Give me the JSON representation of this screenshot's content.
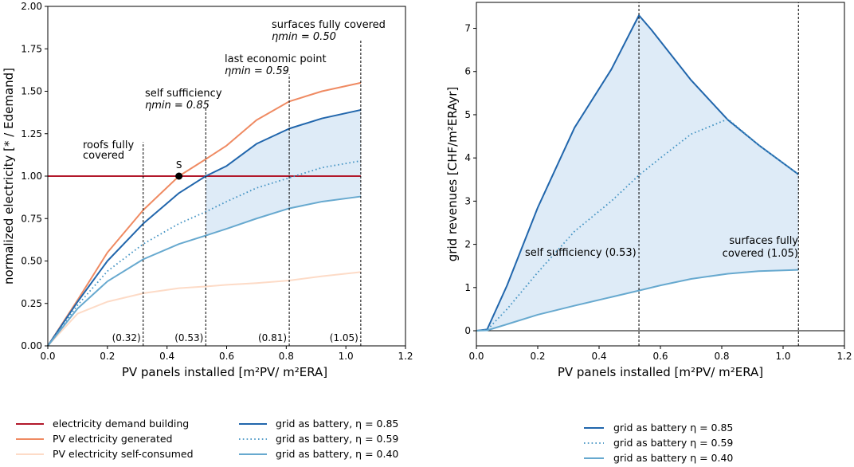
{
  "colors": {
    "demand": "#b2182b",
    "generated": "#ef8a62",
    "self_consumed": "#fddbc7",
    "grid_dark": "#2166ac",
    "grid_mid": "#4393c3",
    "grid_light": "#67a9cf",
    "band_fill": "#deebf7"
  },
  "chart_data": [
    {
      "type": "line",
      "title": "",
      "xlabel": "PV panels installed  [m²PV/ m²ERA]",
      "ylabel": "normalized electricity [* / Edemand]",
      "xlim": [
        0,
        1.2
      ],
      "ylim": [
        0,
        2.0
      ],
      "xticks": [
        "0.0",
        "0.2",
        "0.4",
        "0.6",
        "0.8",
        "1.0",
        "1.2"
      ],
      "yticks": [
        "0.00",
        "0.25",
        "0.50",
        "0.75",
        "1.00",
        "1.25",
        "1.50",
        "1.75",
        "2.00"
      ],
      "series": [
        {
          "name": "electricity demand building",
          "color_key": "demand",
          "style": "solid",
          "x": [
            0,
            1.05
          ],
          "y": [
            1.0,
            1.0
          ]
        },
        {
          "name": "PV electricity generated",
          "color_key": "generated",
          "style": "solid",
          "x": [
            0,
            0.1,
            0.2,
            0.32,
            0.44,
            0.53,
            0.6,
            0.7,
            0.81,
            0.92,
            1.05
          ],
          "y": [
            0,
            0.27,
            0.55,
            0.8,
            1.0,
            1.1,
            1.18,
            1.33,
            1.44,
            1.5,
            1.55
          ]
        },
        {
          "name": "PV electricity self-consumed",
          "color_key": "self_consumed",
          "style": "solid",
          "x": [
            0,
            0.1,
            0.2,
            0.32,
            0.44,
            0.53,
            0.6,
            0.7,
            0.81,
            0.92,
            1.05
          ],
          "y": [
            0,
            0.19,
            0.26,
            0.31,
            0.34,
            0.35,
            0.36,
            0.37,
            0.385,
            0.41,
            0.435
          ]
        },
        {
          "name": "grid as battery, η = 0.85",
          "color_key": "grid_dark",
          "style": "solid",
          "x": [
            0,
            0.1,
            0.2,
            0.32,
            0.44,
            0.53,
            0.6,
            0.7,
            0.81,
            0.92,
            1.05
          ],
          "y": [
            0,
            0.26,
            0.5,
            0.72,
            0.9,
            1.0,
            1.06,
            1.19,
            1.28,
            1.34,
            1.39
          ]
        },
        {
          "name": "grid as battery, η = 0.59",
          "color_key": "grid_mid",
          "style": "dotted",
          "x": [
            0,
            0.1,
            0.2,
            0.32,
            0.44,
            0.53,
            0.6,
            0.7,
            0.81,
            0.92,
            1.05
          ],
          "y": [
            0,
            0.24,
            0.44,
            0.6,
            0.72,
            0.79,
            0.85,
            0.93,
            0.99,
            1.05,
            1.09
          ]
        },
        {
          "name": "grid as battery, η = 0.40",
          "color_key": "grid_light",
          "style": "solid",
          "x": [
            0,
            0.1,
            0.2,
            0.32,
            0.44,
            0.53,
            0.6,
            0.7,
            0.81,
            0.92,
            1.05
          ],
          "y": [
            0,
            0.22,
            0.38,
            0.51,
            0.6,
            0.65,
            0.69,
            0.75,
            0.81,
            0.85,
            0.88
          ]
        }
      ],
      "shaded_band": {
        "between": [
          "grid as battery, η = 0.85",
          "grid as battery, η = 0.40"
        ],
        "x_from": 0.53,
        "x_to": 1.05
      },
      "point": {
        "label": "S",
        "x": 0.44,
        "y": 1.0
      },
      "vlines": [
        {
          "x": 0.32,
          "y_top": 1.2,
          "label": "(0.32)",
          "annotation": [
            "roofs fully",
            "covered"
          ]
        },
        {
          "x": 0.53,
          "y_top": 1.4,
          "label": "(0.53)",
          "annotation": [
            "self sufficiency",
            "ηmin = 0.85"
          ]
        },
        {
          "x": 0.81,
          "y_top": 1.6,
          "label": "(0.81)",
          "annotation": [
            "last economic point",
            "ηmin = 0.59"
          ]
        },
        {
          "x": 1.05,
          "y_top": 1.8,
          "label": "(1.05)",
          "annotation": [
            "surfaces fully covered",
            "ηmin = 0.50"
          ]
        }
      ],
      "legend": [
        "electricity demand building",
        "PV electricity generated",
        "PV electricity self-consumed",
        "grid as battery, η = 0.85",
        "grid as battery, η = 0.59",
        "grid as battery, η = 0.40"
      ]
    },
    {
      "type": "line",
      "title": "",
      "xlabel": "PV panels installed  [m²PV/ m²ERA]",
      "ylabel": "grid revenues [CHF/m²ERAyr]",
      "xlim": [
        0,
        1.2
      ],
      "ylim": [
        -0.35,
        7.6
      ],
      "xticks": [
        "0.0",
        "0.2",
        "0.4",
        "0.6",
        "0.8",
        "1.0",
        "1.2"
      ],
      "yticks": [
        "0",
        "1",
        "2",
        "3",
        "4",
        "5",
        "6",
        "7"
      ],
      "series": [
        {
          "name": "grid as battery η = 0.85",
          "color_key": "grid_dark",
          "style": "solid",
          "x": [
            0,
            0.035,
            0.1,
            0.2,
            0.32,
            0.44,
            0.53,
            0.57,
            0.7,
            0.82,
            0.92,
            1.05
          ],
          "y": [
            0,
            0.03,
            1.05,
            2.85,
            4.7,
            6.05,
            7.3,
            6.97,
            5.8,
            4.88,
            4.3,
            3.62
          ]
        },
        {
          "name": "grid as battery η = 0.59",
          "color_key": "grid_mid",
          "style": "dotted",
          "x": [
            0,
            0.035,
            0.1,
            0.2,
            0.32,
            0.44,
            0.53,
            0.6,
            0.7,
            0.82,
            0.92,
            1.05
          ],
          "y": [
            0,
            0.02,
            0.5,
            1.35,
            2.3,
            3.0,
            3.6,
            4.0,
            4.55,
            4.9,
            4.3,
            3.62
          ]
        },
        {
          "name": "grid as battery η = 0.40",
          "color_key": "grid_light",
          "style": "solid",
          "x": [
            0,
            0.035,
            0.1,
            0.2,
            0.32,
            0.44,
            0.53,
            0.6,
            0.7,
            0.82,
            0.92,
            1.05
          ],
          "y": [
            0,
            0.01,
            0.15,
            0.37,
            0.58,
            0.78,
            0.93,
            1.05,
            1.2,
            1.32,
            1.38,
            1.41
          ]
        }
      ],
      "shaded_band": {
        "between": [
          "grid as battery η = 0.85",
          "grid as battery η = 0.40"
        ],
        "x_from": 0.035,
        "x_to": 1.05
      },
      "hline": {
        "y": 0
      },
      "vlines": [
        {
          "x": 0.53,
          "annotation": [
            "self sufficiency (0.53)"
          ]
        },
        {
          "x": 1.05,
          "annotation": [
            "surfaces fully",
            "covered (1.05)"
          ]
        }
      ],
      "legend": [
        "grid as battery η = 0.85",
        "grid as battery η = 0.59",
        "grid as battery η = 0.40"
      ]
    }
  ]
}
